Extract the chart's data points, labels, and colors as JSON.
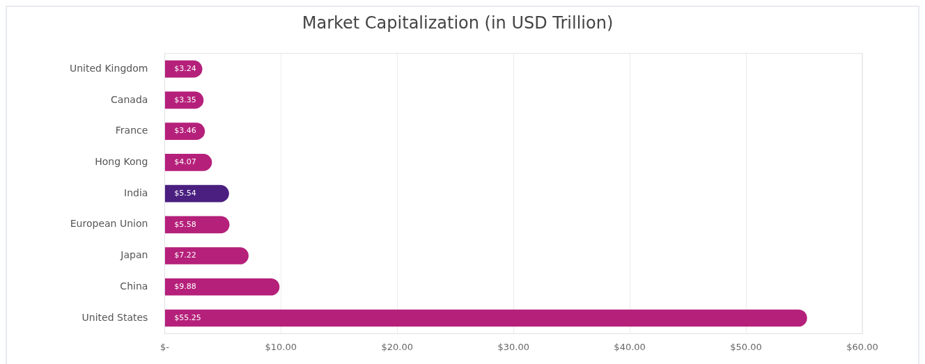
{
  "chart_data": {
    "type": "bar",
    "orientation": "horizontal",
    "title": "Market Capitalization (in USD Trillion)",
    "categories": [
      "United Kingdom",
      "Canada",
      "France",
      "Hong Kong",
      "India",
      "European Union",
      "Japan",
      "China",
      "United States"
    ],
    "values": [
      3.24,
      3.35,
      3.46,
      4.07,
      5.54,
      5.58,
      7.22,
      9.88,
      55.25
    ],
    "colors": [
      "#b5207a",
      "#b5207a",
      "#b5207a",
      "#b5207a",
      "#4a1f80",
      "#b5207a",
      "#b5207a",
      "#b5207a",
      "#b5207a"
    ],
    "value_labels": [
      "$3.24",
      "$3.35",
      "$3.46",
      "$4.07",
      "$5.54",
      "$5.58",
      "$7.22",
      "$9.88",
      "$55.25"
    ],
    "xlim": [
      0,
      60
    ],
    "xticks": [
      {
        "value": 0,
        "label": "$-"
      },
      {
        "value": 10,
        "label": "$10.00"
      },
      {
        "value": 20,
        "label": "$20.00"
      },
      {
        "value": 30,
        "label": "$30.00"
      },
      {
        "value": 40,
        "label": "$40.00"
      },
      {
        "value": 50,
        "label": "$50.00"
      },
      {
        "value": 60,
        "label": "$60.00"
      }
    ],
    "grid": "x",
    "legend": false
  }
}
